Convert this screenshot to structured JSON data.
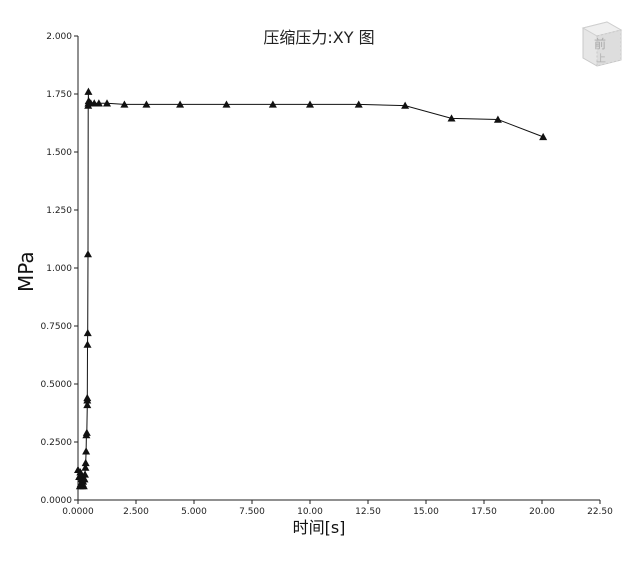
{
  "chart_data": {
    "type": "line",
    "title": "压缩压力:XY 图",
    "xlabel": "时间[s]",
    "ylabel": "MPa",
    "xlim": [
      0,
      22.5
    ],
    "ylim": [
      0,
      2.0
    ],
    "x_ticks": [
      "0.0000",
      "2.500",
      "5.000",
      "7.500",
      "10.00",
      "12.50",
      "15.00",
      "17.50",
      "20.00",
      "22.50"
    ],
    "y_ticks": [
      "0.0000",
      "0.2500",
      "0.5000",
      "0.7500",
      "1.000",
      "1.250",
      "1.500",
      "1.750",
      "2.000"
    ],
    "marker": "triangle",
    "series": [
      {
        "x": [
          0.0,
          0.05,
          0.08,
          0.1,
          0.12,
          0.15,
          0.17,
          0.18,
          0.2,
          0.22,
          0.25,
          0.28,
          0.3,
          0.32,
          0.33,
          0.35,
          0.36,
          0.38,
          0.4,
          0.4,
          0.4,
          0.41,
          0.42,
          0.43,
          0.44,
          0.45,
          0.45,
          0.46,
          0.47,
          0.48,
          0.5,
          0.55,
          0.7,
          0.9,
          1.25,
          2.0,
          2.95,
          4.4,
          6.4,
          8.4,
          10.0,
          12.1,
          14.1,
          16.1,
          18.1,
          20.05
        ],
        "y": [
          0.13,
          0.1,
          0.06,
          0.12,
          0.07,
          0.09,
          0.06,
          0.1,
          0.07,
          0.08,
          0.06,
          0.09,
          0.11,
          0.14,
          0.16,
          0.21,
          0.28,
          0.29,
          0.41,
          0.43,
          0.44,
          0.67,
          0.72,
          1.06,
          1.7,
          1.76,
          1.71,
          1.72,
          1.71,
          1.71,
          1.71,
          1.71,
          1.71,
          1.71,
          1.71,
          1.705,
          1.705,
          1.705,
          1.705,
          1.705,
          1.705,
          1.705,
          1.7,
          1.645,
          1.64,
          1.565
        ]
      }
    ],
    "grid": false,
    "legend": "none"
  },
  "watermark": {
    "glyph_top": "前",
    "glyph_bottom": "上"
  }
}
